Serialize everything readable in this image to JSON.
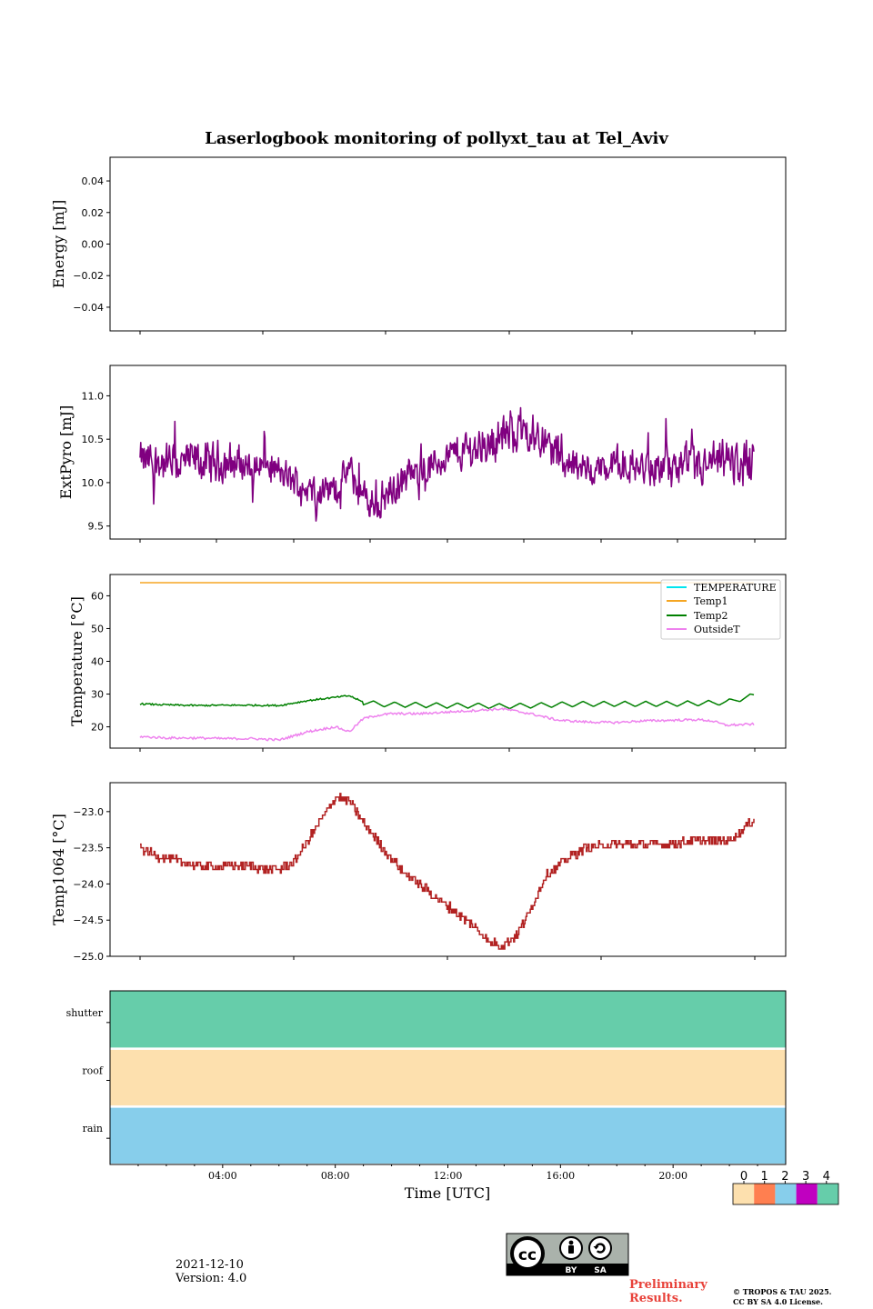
{
  "colors": {
    "extpyro": "#800080",
    "temperature": "#00e5ee",
    "temp1": "#f5a623",
    "temp2": "#008000",
    "outside": "#ee82ee",
    "temp1064": "#b22222",
    "status_levels": [
      "#fde0ae",
      "#ff7f50",
      "#87ceeb",
      "#c000c0",
      "#66cdaa"
    ],
    "prelim": "#e8423a"
  },
  "chart_data": [
    {
      "panel": "energy",
      "type": "line",
      "title": "Laserlogbook monitoring of pollyxt_tau at Tel_Aviv",
      "ylabel": "Energy [mJ]",
      "ylim": [
        -0.055,
        0.055
      ],
      "yticks": [
        0.04,
        0.02,
        0.0,
        -0.02,
        -0.04
      ],
      "ytick_labels": [
        "0.04",
        "0.02",
        "0.00",
        "−0.02",
        "−0.04"
      ],
      "series": []
    },
    {
      "panel": "extpyro",
      "type": "line",
      "ylabel": "ExtPyro [mJ]",
      "ylim": [
        9.35,
        11.35
      ],
      "yticks": [
        9.5,
        10.0,
        10.5,
        11.0
      ],
      "ytick_labels": [
        "9.5",
        "10.0",
        "10.5",
        "11.0"
      ],
      "x_hours": [
        0.0,
        0.5,
        1.0,
        1.5,
        2.0,
        2.5,
        3.0,
        3.5,
        4.0,
        4.5,
        5.0,
        5.5,
        6.0,
        6.5,
        7.0,
        7.5,
        8.0,
        8.5,
        9.0,
        9.5,
        10.0,
        10.5,
        11.0,
        11.5,
        12.0,
        12.5,
        13.0,
        13.5,
        14.0,
        14.5,
        15.0,
        15.5,
        16.0,
        16.5,
        17.0,
        17.5,
        18.0,
        18.5,
        19.0,
        19.5,
        20.0,
        20.5,
        21.0,
        21.5,
        22.0
      ],
      "mean": [
        10.25,
        10.25,
        10.22,
        10.22,
        10.25,
        10.2,
        10.25,
        10.22,
        10.2,
        10.2,
        10.1,
        10.02,
        9.95,
        9.9,
        9.92,
        10.15,
        9.8,
        9.75,
        9.9,
        10.05,
        10.1,
        10.2,
        10.3,
        10.35,
        10.4,
        10.45,
        10.55,
        10.6,
        10.6,
        10.5,
        10.3,
        10.2,
        10.15,
        10.15,
        10.2,
        10.2,
        10.15,
        10.15,
        10.15,
        10.15,
        10.15,
        10.2,
        10.25,
        10.2,
        10.3
      ],
      "amplitude": [
        0.28,
        0.3,
        0.3,
        0.32,
        0.3,
        0.3,
        0.3,
        0.28,
        0.25,
        0.25,
        0.25,
        0.22,
        0.22,
        0.22,
        0.22,
        0.22,
        0.28,
        0.28,
        0.25,
        0.22,
        0.22,
        0.25,
        0.25,
        0.3,
        0.3,
        0.32,
        0.32,
        0.32,
        0.3,
        0.3,
        0.28,
        0.25,
        0.25,
        0.25,
        0.25,
        0.25,
        0.28,
        0.28,
        0.3,
        0.32,
        0.32,
        0.3,
        0.3,
        0.35,
        0.4
      ]
    },
    {
      "panel": "temperature",
      "type": "line",
      "ylabel": "Temperature [°C]",
      "ylim": [
        13.5,
        66.5
      ],
      "yticks": [
        20,
        30,
        40,
        50,
        60
      ],
      "ytick_labels": [
        "20",
        "30",
        "40",
        "50",
        "60"
      ],
      "legend_position": "top-right",
      "x_hours": [
        0.0,
        1.0,
        2.0,
        3.0,
        4.0,
        5.0,
        6.0,
        7.0,
        7.5,
        8.0,
        8.5,
        9.0,
        10.0,
        11.0,
        12.0,
        13.0,
        14.0,
        15.0,
        16.0,
        17.0,
        18.0,
        19.0,
        20.0,
        20.5,
        21.0,
        22.0
      ],
      "series": [
        {
          "name": "TEMPERATURE",
          "values": []
        },
        {
          "name": "Temp1",
          "values": [
            64,
            64,
            64,
            64,
            64,
            64,
            64,
            64,
            64,
            64,
            64,
            64,
            64,
            64,
            64,
            64,
            64,
            64,
            64,
            64,
            64,
            64,
            64,
            64,
            64,
            64
          ]
        },
        {
          "name": "Temp2",
          "values": [
            27.0,
            26.7,
            26.5,
            26.6,
            26.6,
            26.5,
            28.0,
            29.0,
            29.5,
            27.5,
            27.0,
            26.8,
            26.7,
            26.5,
            26.5,
            26.3,
            26.5,
            26.8,
            27.0,
            27.0,
            27.0,
            27.0,
            27.2,
            27.3,
            27.5,
            29.5
          ]
        },
        {
          "name": "OutsideT",
          "values": [
            17.0,
            16.6,
            16.6,
            16.4,
            16.4,
            16.0,
            18.5,
            20.0,
            18.5,
            22.5,
            23.5,
            24.0,
            24.0,
            24.5,
            25.0,
            25.5,
            24.0,
            22.0,
            21.5,
            21.3,
            21.8,
            22.0,
            22.2,
            21.8,
            20.5,
            20.8
          ]
        }
      ]
    },
    {
      "panel": "temp1064",
      "type": "line",
      "ylabel": "Temp1064 [°C]",
      "ylim": [
        -25.0,
        -22.6
      ],
      "yticks": [
        -23.0,
        -23.5,
        -24.0,
        -24.5,
        -25.0
      ],
      "ytick_labels": [
        "−23.0",
        "−23.5",
        "−24.0",
        "−24.5",
        "−25.0"
      ],
      "x_hours": [
        0.0,
        0.5,
        1.0,
        2.0,
        3.0,
        4.0,
        4.5,
        5.0,
        5.5,
        6.0,
        6.5,
        7.0,
        7.5,
        8.0,
        8.5,
        9.0,
        9.5,
        10.0,
        10.5,
        11.0,
        11.5,
        12.0,
        12.5,
        13.0,
        13.5,
        14.0,
        14.5,
        15.0,
        15.5,
        16.0,
        17.0,
        18.0,
        19.0,
        20.0,
        21.0,
        21.5,
        22.0
      ],
      "values": [
        -23.5,
        -23.6,
        -23.65,
        -23.75,
        -23.75,
        -23.75,
        -23.8,
        -23.8,
        -23.7,
        -23.4,
        -23.1,
        -22.8,
        -22.85,
        -23.15,
        -23.4,
        -23.65,
        -23.85,
        -24.0,
        -24.15,
        -24.3,
        -24.45,
        -24.6,
        -24.8,
        -24.85,
        -24.7,
        -24.35,
        -23.9,
        -23.75,
        -23.6,
        -23.5,
        -23.45,
        -23.45,
        -23.45,
        -23.4,
        -23.4,
        -23.3,
        -23.1
      ]
    },
    {
      "panel": "status",
      "type": "heatmap",
      "xlabel": "Time [UTC]",
      "xticks_hours": [
        4,
        8,
        12,
        16,
        20
      ],
      "xtick_labels": [
        "04:00",
        "08:00",
        "12:00",
        "16:00",
        "20:00"
      ],
      "rows": [
        {
          "label": "shutter",
          "level": 4
        },
        {
          "label": "roof",
          "level": 0
        },
        {
          "label": "rain",
          "level": 2
        }
      ],
      "colorbar_ticks": [
        "0",
        "1",
        "2",
        "3",
        "4"
      ]
    }
  ],
  "footer": {
    "date": "2021-12-10",
    "version": "Version: 4.0",
    "license_badge": {
      "cc": "cc",
      "by": "BY",
      "sa": "SA"
    },
    "prelim_line1": "Preliminary",
    "prelim_line2": "Results.",
    "copyright_line1": "© TROPOS & TAU 2025.",
    "copyright_line2": "CC BY SA 4.0 License."
  }
}
